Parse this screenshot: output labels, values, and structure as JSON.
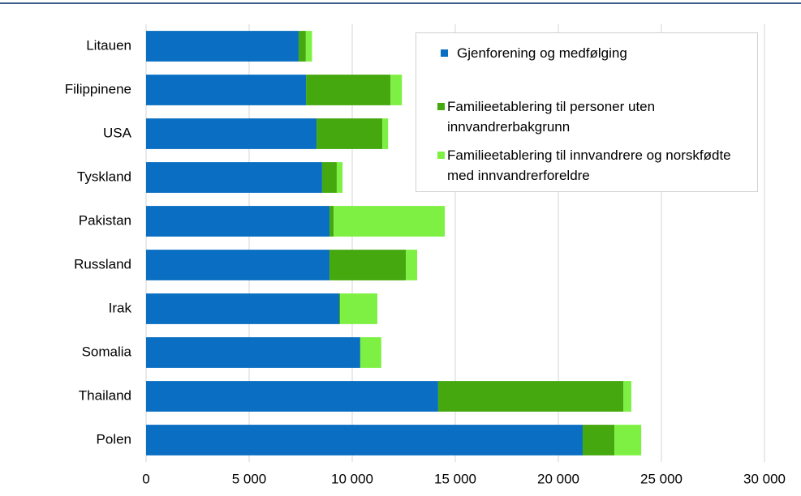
{
  "chart_data": {
    "type": "stacked_barh",
    "categories": [
      "Litauen",
      "Filippinene",
      "USA",
      "Tyskland",
      "Pakistan",
      "Russland",
      "Irak",
      "Somalia",
      "Thailand",
      "Polen"
    ],
    "series": [
      {
        "name": "Gjenforening og medfølging",
        "color": "#0a6fc2",
        "values": [
          7400,
          7760,
          8270,
          8540,
          8900,
          8900,
          9370,
          10390,
          14170,
          21180
        ]
      },
      {
        "name": "Familieetablering til personer uten innvandrerbakgrunn",
        "color": "#45a80f",
        "values": [
          350,
          4100,
          3190,
          710,
          200,
          3700,
          40,
          0,
          8980,
          1540
        ]
      },
      {
        "name": "Familieetablering til innvandrere og norskfødte med innvandrerforeldre",
        "color": "#7ef043",
        "values": [
          300,
          550,
          280,
          280,
          5390,
          550,
          1810,
          1020,
          390,
          1300
        ]
      }
    ],
    "xlim": [
      0,
      30000
    ],
    "xticks": [
      0,
      {
        "value": 5000,
        "label": "5 000"
      },
      {
        "value": 10000,
        "label": "10 000"
      },
      {
        "value": 15000,
        "label": "15 000"
      },
      {
        "value": 20000,
        "label": "20 000"
      },
      {
        "value": 25000,
        "label": "25 000"
      },
      {
        "value": 30000,
        "label": "30 000"
      }
    ],
    "grid": true
  }
}
